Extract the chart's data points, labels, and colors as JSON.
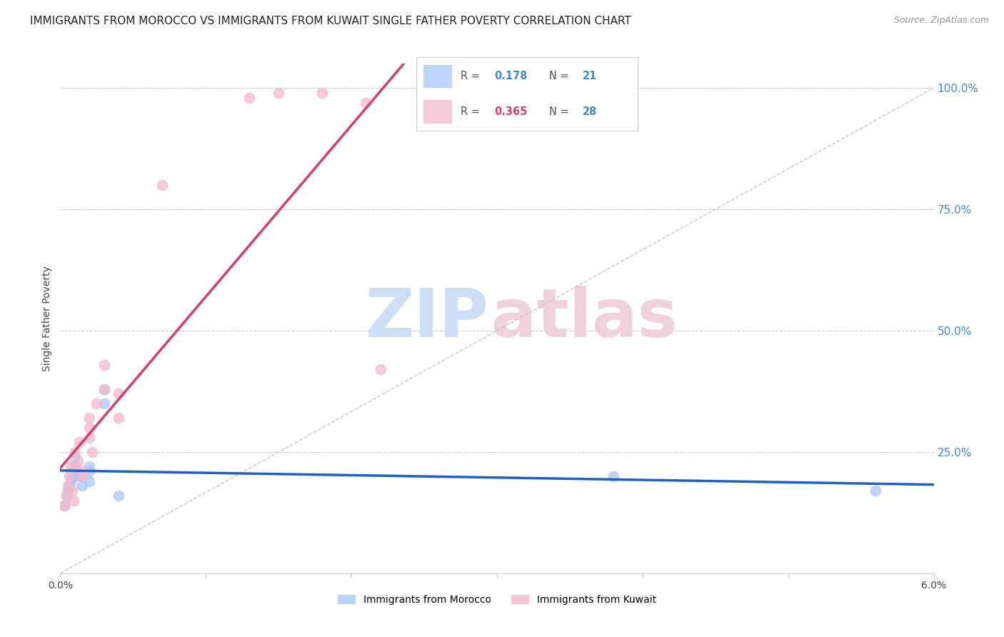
{
  "title": "IMMIGRANTS FROM MOROCCO VS IMMIGRANTS FROM KUWAIT SINGLE FATHER POVERTY CORRELATION CHART",
  "source": "Source: ZipAtlas.com",
  "ylabel": "Single Father Poverty",
  "right_yticks": [
    "100.0%",
    "75.0%",
    "50.0%",
    "25.0%"
  ],
  "right_ytick_vals": [
    1.0,
    0.75,
    0.5,
    0.25
  ],
  "xlim": [
    0.0,
    0.06
  ],
  "ylim": [
    0.0,
    1.05
  ],
  "morocco_x": [
    0.0003,
    0.0004,
    0.0005,
    0.0006,
    0.0007,
    0.0008,
    0.0009,
    0.001,
    0.001,
    0.001,
    0.001,
    0.0015,
    0.0015,
    0.002,
    0.002,
    0.002,
    0.003,
    0.003,
    0.004,
    0.038,
    0.056
  ],
  "morocco_y": [
    0.14,
    0.16,
    0.17,
    0.18,
    0.19,
    0.2,
    0.22,
    0.2,
    0.21,
    0.22,
    0.24,
    0.2,
    0.18,
    0.22,
    0.21,
    0.19,
    0.35,
    0.38,
    0.16,
    0.2,
    0.17
  ],
  "kuwait_x": [
    0.0003,
    0.0004,
    0.0005,
    0.0006,
    0.0007,
    0.0008,
    0.0009,
    0.001,
    0.001,
    0.0012,
    0.0013,
    0.0015,
    0.0016,
    0.002,
    0.002,
    0.002,
    0.0022,
    0.0025,
    0.003,
    0.003,
    0.004,
    0.004,
    0.007,
    0.013,
    0.015,
    0.018,
    0.021,
    0.022
  ],
  "kuwait_y": [
    0.14,
    0.16,
    0.18,
    0.2,
    0.22,
    0.17,
    0.15,
    0.22,
    0.25,
    0.23,
    0.27,
    0.2,
    0.21,
    0.28,
    0.3,
    0.32,
    0.25,
    0.35,
    0.38,
    0.43,
    0.37,
    0.32,
    0.8,
    0.98,
    0.99,
    0.99,
    0.97,
    0.42
  ],
  "morocco_color": "#a8c8f8",
  "kuwait_color": "#f4b8cc",
  "morocco_line_color": "#2060c0",
  "kuwait_line_color": "#d04070",
  "morocco_R": "0.178",
  "morocco_N": "21",
  "kuwait_R": "0.365",
  "kuwait_N": "28",
  "grid_color": "#cccccc",
  "background_color": "#ffffff",
  "title_fontsize": 11,
  "axis_label_fontsize": 10,
  "tick_fontsize": 10,
  "right_tick_color": "#4488cc",
  "source_color": "#999999"
}
